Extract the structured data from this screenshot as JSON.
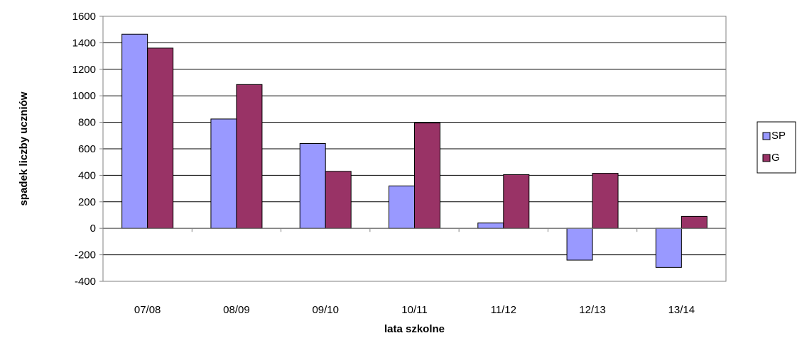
{
  "chart_data": {
    "type": "bar",
    "title": "",
    "xlabel": "lata szkolne",
    "ylabel": "spadek liczby uczniów",
    "ylim": [
      -400,
      1600
    ],
    "yticks": [
      -400,
      -200,
      0,
      200,
      400,
      600,
      800,
      1000,
      1200,
      1400,
      1600
    ],
    "categories": [
      "07/08",
      "08/09",
      "09/10",
      "10/11",
      "11/12",
      "12/13",
      "13/14"
    ],
    "series": [
      {
        "name": "SP",
        "color": "#9999ff",
        "values": [
          1465,
          825,
          640,
          320,
          40,
          -240,
          -295
        ]
      },
      {
        "name": "G",
        "color": "#993366",
        "values": [
          1360,
          1085,
          430,
          795,
          405,
          415,
          90
        ]
      }
    ],
    "grid": true,
    "legend_position": "right",
    "plot_background": "#ffffff"
  }
}
